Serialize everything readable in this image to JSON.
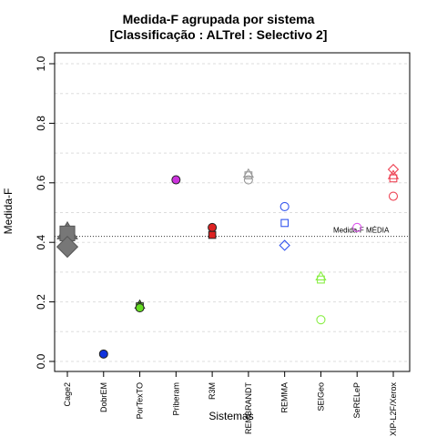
{
  "chart_data": {
    "type": "scatter",
    "title": "Medida-F agrupada por sistema",
    "subtitle": "[Classificação : ALTrel : Selectivo 2]",
    "xlabel": "Sistemas",
    "ylabel": "Medida-F",
    "ylim": [
      0.0,
      1.0
    ],
    "yticks": [
      "0.0",
      "0.2",
      "0.4",
      "0.6",
      "0.8",
      "1.0"
    ],
    "grid": true,
    "categories": [
      "Cage2",
      "DobrEM",
      "PorTexTO",
      "Priberam",
      "R3M",
      "REMBRANDT",
      "REMMA",
      "SEIGeo",
      "SeRELeP",
      "XIP-L2F/Xerox"
    ],
    "series": [
      {
        "category": "Cage2",
        "color": "#777777",
        "points": [
          {
            "y": 0.435,
            "shape": "triangle",
            "filled": true,
            "big": true
          },
          {
            "y": 0.43,
            "shape": "square",
            "filled": true,
            "big": true
          },
          {
            "y": 0.385,
            "shape": "diamond",
            "filled": true,
            "big": true
          }
        ]
      },
      {
        "category": "DobrEM",
        "color": "#1133dd",
        "points": [
          {
            "y": 0.025,
            "shape": "circle",
            "filled": true
          }
        ]
      },
      {
        "category": "PorTexTO",
        "color": "#66dd22",
        "points": [
          {
            "y": 0.19,
            "shape": "triangle",
            "filled": true
          },
          {
            "y": 0.185,
            "shape": "square",
            "filled": true
          },
          {
            "y": 0.18,
            "shape": "circle",
            "filled": true
          }
        ]
      },
      {
        "category": "Priberam",
        "color": "#cc33dd",
        "points": [
          {
            "y": 0.61,
            "shape": "circle",
            "filled": true
          }
        ]
      },
      {
        "category": "R3M",
        "color": "#dd2222",
        "points": [
          {
            "y": 0.45,
            "shape": "circle",
            "filled": true
          },
          {
            "y": 0.425,
            "shape": "square",
            "filled": true
          }
        ]
      },
      {
        "category": "REMBRANDT",
        "color": "#999999",
        "points": [
          {
            "y": 0.63,
            "shape": "triangle",
            "filled": false
          },
          {
            "y": 0.625,
            "shape": "square",
            "filled": false
          },
          {
            "y": 0.61,
            "shape": "circle",
            "filled": false
          }
        ]
      },
      {
        "category": "REMMA",
        "color": "#3355ee",
        "points": [
          {
            "y": 0.52,
            "shape": "circle",
            "filled": false
          },
          {
            "y": 0.465,
            "shape": "square",
            "filled": false
          },
          {
            "y": 0.39,
            "shape": "diamond",
            "filled": false
          }
        ]
      },
      {
        "category": "SEIGeo",
        "color": "#88ee44",
        "points": [
          {
            "y": 0.285,
            "shape": "triangle",
            "filled": false
          },
          {
            "y": 0.275,
            "shape": "square",
            "filled": false
          },
          {
            "y": 0.14,
            "shape": "circle",
            "filled": false
          }
        ]
      },
      {
        "category": "SeRELeP",
        "color": "#dd55ee",
        "points": [
          {
            "y": 0.45,
            "shape": "circle",
            "filled": false
          }
        ]
      },
      {
        "category": "XIP-L2F/Xerox",
        "color": "#ee4455",
        "points": [
          {
            "y": 0.645,
            "shape": "diamond",
            "filled": false
          },
          {
            "y": 0.625,
            "shape": "triangle",
            "filled": false
          },
          {
            "y": 0.615,
            "shape": "square",
            "filled": false
          },
          {
            "y": 0.555,
            "shape": "circle",
            "filled": false
          }
        ]
      }
    ],
    "mean_line": {
      "y": 0.42,
      "label": "Medida-F MÉDIA"
    }
  }
}
